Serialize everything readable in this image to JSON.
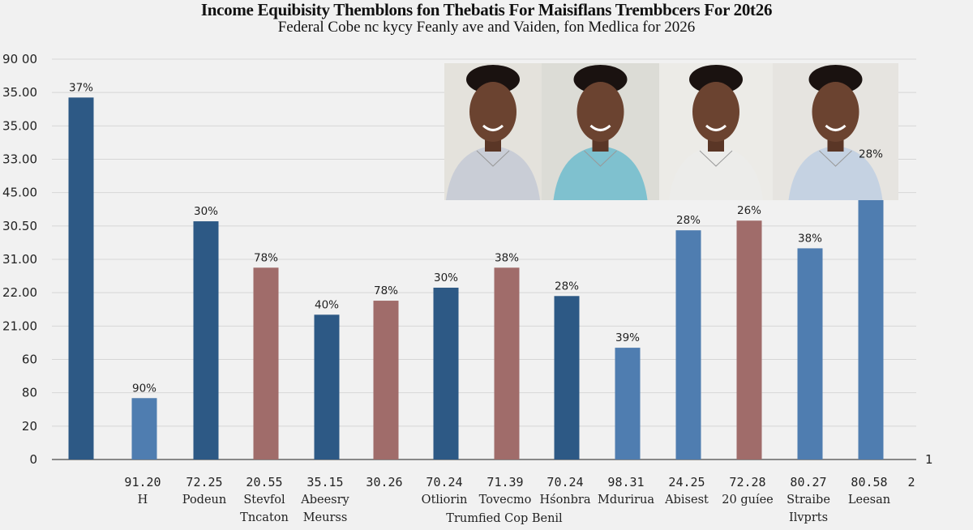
{
  "chart_data": {
    "type": "bar",
    "title": "Income Equibisity Themblons fon Thebatis For Maisiflans Trembbcers For 20t26",
    "subtitle": "Federal Cobe nc kycy Feanly ave and Vaiden, fon Medlica for 2026",
    "y_tick_labels": [
      "0",
      "20",
      "80",
      "60",
      "21.00",
      "22.00",
      "31.00",
      "30.50",
      "45.00",
      "33.00",
      "35.00",
      "35.00",
      "90 00"
    ],
    "ylim": [
      0,
      12
    ],
    "grid": true,
    "legend": "none",
    "colors": {
      "dark_blue": "#2d5985",
      "light_blue": "#4f7db0",
      "rose": "#a06c6a"
    },
    "bars": [
      {
        "value": 10.85,
        "label": "37%",
        "color": "dark_blue",
        "x_number": "",
        "x_name": "",
        "x_name2": ""
      },
      {
        "value": 1.84,
        "label": "90%",
        "color": "light_blue",
        "x_number": "91.20",
        "x_name": "H",
        "x_name2": ""
      },
      {
        "value": 7.14,
        "label": "30%",
        "color": "dark_blue",
        "x_number": "72.25",
        "x_name": "Podeun",
        "x_name2": ""
      },
      {
        "value": 5.75,
        "label": "78%",
        "color": "rose",
        "x_number": "20.55",
        "x_name": "Stevfol",
        "x_name2": "Tncaton"
      },
      {
        "value": 4.34,
        "label": "40%",
        "color": "dark_blue",
        "x_number": "35.15",
        "x_name": "Abeesry",
        "x_name2": "Meurss"
      },
      {
        "value": 4.76,
        "label": "78%",
        "color": "rose",
        "x_number": "30.26",
        "x_name": "",
        "x_name2": ""
      },
      {
        "value": 5.15,
        "label": "30%",
        "color": "dark_blue",
        "x_number": "70.24",
        "x_name": "Otliorin",
        "x_name2": ""
      },
      {
        "value": 5.75,
        "label": "38%",
        "color": "rose",
        "x_number": "71.39",
        "x_name": "Tovecmo",
        "x_name2": ""
      },
      {
        "value": 4.9,
        "label": "28%",
        "color": "dark_blue",
        "x_number": "70.24",
        "x_name": "Hśonbra",
        "x_name2": ""
      },
      {
        "value": 3.35,
        "label": "39%",
        "color": "light_blue",
        "x_number": "98.31",
        "x_name": "Mdurirua",
        "x_name2": ""
      },
      {
        "value": 6.87,
        "label": "28%",
        "color": "light_blue",
        "x_number": "24.25",
        "x_name": "Abisest",
        "x_name2": ""
      },
      {
        "value": 7.16,
        "label": "26%",
        "color": "rose",
        "x_number": "72.28",
        "x_name": "20 guíee",
        "x_name2": ""
      },
      {
        "value": 6.33,
        "label": "38%",
        "color": "light_blue",
        "x_number": "80.27",
        "x_name": "Straibe",
        "x_name2": "Ilvprts"
      },
      {
        "value": 8.86,
        "label": "28%",
        "color": "light_blue",
        "x_number": "80.58",
        "x_name": "Leesan",
        "x_name2": ""
      }
    ],
    "shared_x_name": "Trumfied Cop Benil",
    "extra_labels": {
      "right_axis": "1",
      "right_x": "2"
    }
  }
}
